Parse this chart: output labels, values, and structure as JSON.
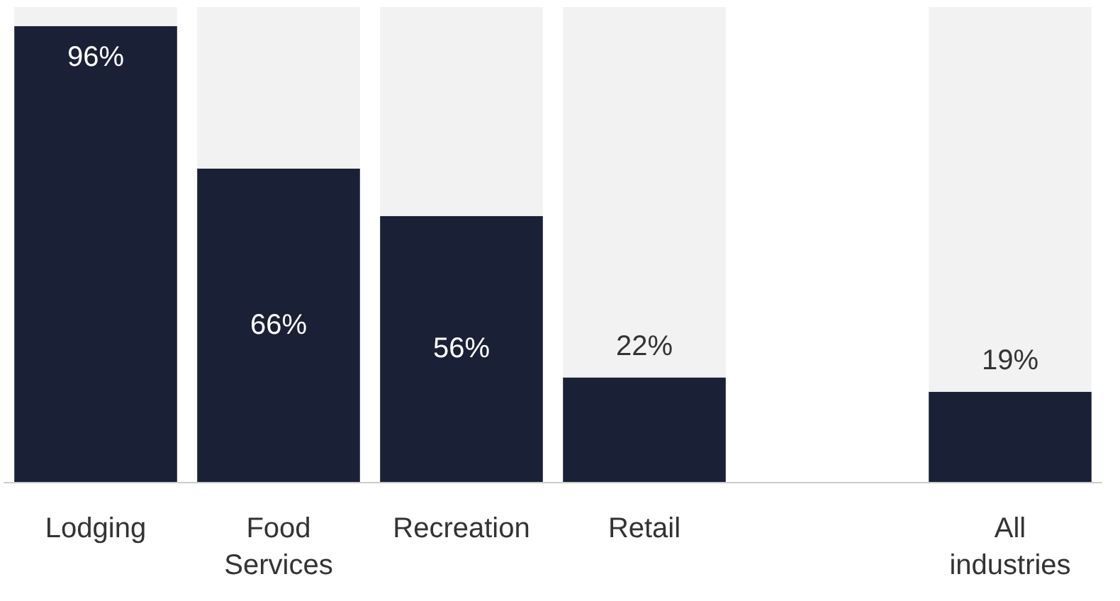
{
  "chart_data": {
    "type": "bar",
    "stacked": true,
    "categories": [
      "Lodging",
      "Food\nServices",
      "Recreation",
      "Retail",
      null,
      "All\nindustries"
    ],
    "series": [
      {
        "color": "#1a2035",
        "values": [
          96,
          66,
          56,
          22,
          null,
          19
        ],
        "value_labels": [
          "96%",
          "66%",
          "56%",
          "22%",
          null,
          "19%"
        ]
      },
      {
        "color": "#f2f2f2",
        "values": [
          4,
          34,
          44,
          78,
          null,
          81
        ]
      }
    ],
    "ylim": [
      0,
      100
    ],
    "tick_labels": "x"
  }
}
